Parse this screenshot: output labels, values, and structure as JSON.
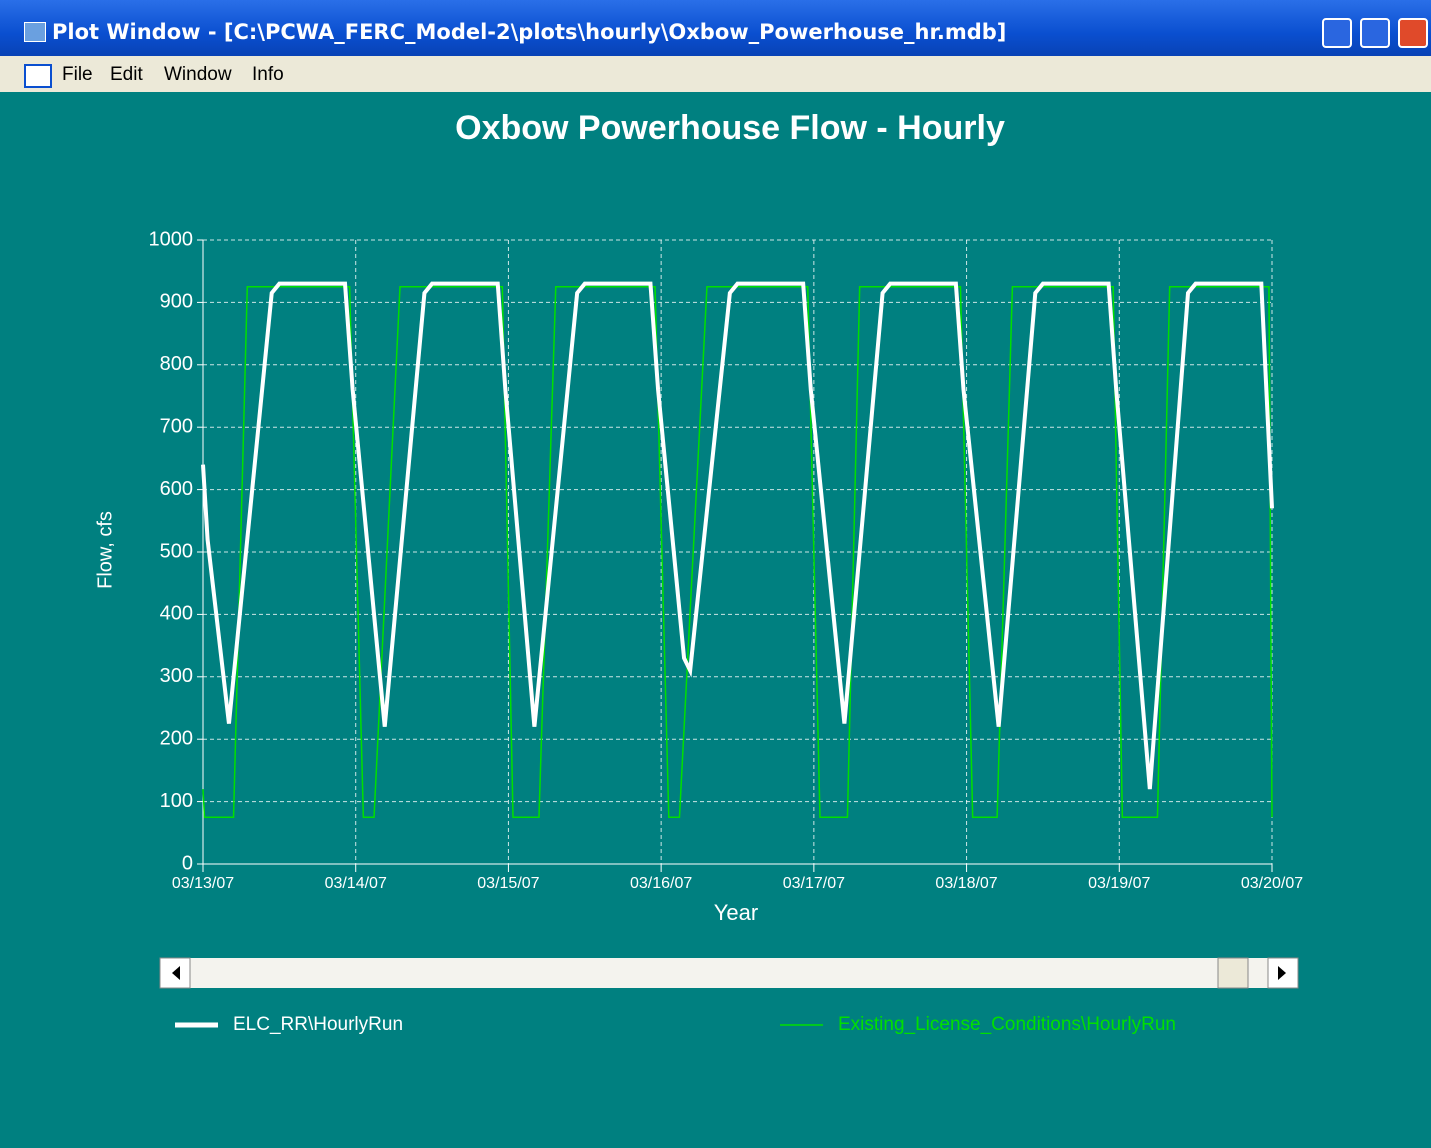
{
  "window": {
    "title": "Plot Window - [C:\\PCWA_FERC_Model-2\\plots\\hourly\\Oxbow_Powerhouse_hr.mdb]",
    "menu": [
      "File",
      "Edit",
      "Window",
      "Info"
    ]
  },
  "chart_data": {
    "type": "line",
    "title": "Oxbow Powerhouse Flow - Hourly",
    "x_label": "Year",
    "y_label": "Flow, cfs",
    "xlim": [
      0,
      7
    ],
    "xticks": [
      {
        "value": 0,
        "label": "03/13/07"
      },
      {
        "value": 1,
        "label": "03/14/07"
      },
      {
        "value": 2,
        "label": "03/15/07"
      },
      {
        "value": 3,
        "label": "03/16/07"
      },
      {
        "value": 4,
        "label": "03/17/07"
      },
      {
        "value": 5,
        "label": "03/18/07"
      },
      {
        "value": 6,
        "label": "03/19/07"
      },
      {
        "value": 7,
        "label": "03/20/07"
      }
    ],
    "ylim": [
      0,
      1000
    ],
    "yticks": [
      0,
      100,
      200,
      300,
      400,
      500,
      600,
      700,
      800,
      900,
      1000
    ],
    "grid": true,
    "series": [
      {
        "name": "ELC_RR\\HourlyRun",
        "color": "#ffffff",
        "x": [
          0,
          0.03,
          0.17,
          0.45,
          0.5,
          0.93,
          0.98,
          1.19,
          1.45,
          1.5,
          1.93,
          1.98,
          2.17,
          2.45,
          2.5,
          2.93,
          2.98,
          3.15,
          3.19,
          3.45,
          3.5,
          3.93,
          3.98,
          4.2,
          4.45,
          4.5,
          4.93,
          4.98,
          5.21,
          5.45,
          5.5,
          5.93,
          5.98,
          6.2,
          6.45,
          6.5,
          6.93,
          7.0
        ],
        "values": [
          640,
          520,
          225,
          915,
          930,
          930,
          760,
          220,
          915,
          930,
          930,
          760,
          220,
          915,
          930,
          930,
          760,
          330,
          310,
          915,
          930,
          930,
          760,
          225,
          915,
          930,
          930,
          760,
          220,
          915,
          930,
          930,
          760,
          120,
          915,
          930,
          930,
          570
        ]
      },
      {
        "name": "Existing_License_Conditions\\HourlyRun",
        "color": "#00e000",
        "x": [
          0,
          0.01,
          0.2,
          0.29,
          0.96,
          1.05,
          1.12,
          1.29,
          1.96,
          2.03,
          2.2,
          2.31,
          2.96,
          3.05,
          3.12,
          3.3,
          3.96,
          4.04,
          4.22,
          4.3,
          4.96,
          5.04,
          5.2,
          5.3,
          5.96,
          6.02,
          6.25,
          6.33,
          6.98,
          7.0
        ],
        "values": [
          120,
          75,
          75,
          925,
          925,
          75,
          75,
          925,
          925,
          75,
          75,
          925,
          925,
          75,
          75,
          925,
          925,
          75,
          75,
          925,
          925,
          75,
          75,
          925,
          925,
          75,
          75,
          925,
          925,
          75
        ]
      }
    ]
  }
}
